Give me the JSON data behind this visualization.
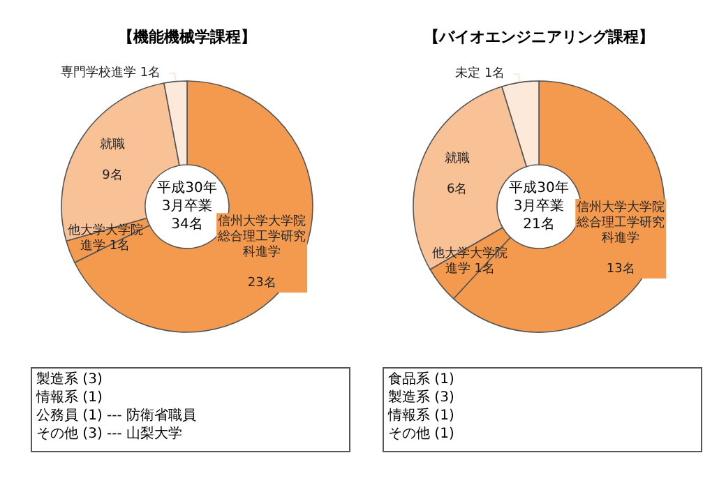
{
  "chart_data": [
    {
      "type": "donut",
      "title": "【機能機械学課程】",
      "categories": [
        "信州大学大学院総合理工学研究科進学",
        "他大学大学院進学",
        "就職",
        "専門学校進学"
      ],
      "values": [
        23,
        1,
        9,
        1
      ],
      "value_labels": [
        "23名",
        "1名",
        "9名",
        "1名"
      ],
      "colors": [
        "#f39a4e",
        "#f39a4e",
        "#f8c196",
        "#fde9da"
      ],
      "annotations": [
        "平成30年\n3月卒業\n34名",
        "製造系 (3)",
        "情報系 (1)",
        "公務員 (1) --- 防衛省職員",
        "その他 (3) --- 山梨大学"
      ]
    },
    {
      "type": "donut",
      "title": "【バイオエンジニアリング課程】",
      "categories": [
        "信州大学大学院総合理工学研究科進学",
        "他大学大学院進学",
        "就職",
        "未定"
      ],
      "values": [
        13,
        1,
        6,
        1
      ],
      "value_labels": [
        "13名",
        "1名",
        "6名",
        "1名"
      ],
      "colors": [
        "#f39a4e",
        "#f39a4e",
        "#f8c196",
        "#fde9da"
      ],
      "annotations": [
        "平成30年\n3月卒業\n21名",
        "食品系 (1)",
        "製造系 (3)",
        "情報系 (1)",
        "その他 (1)"
      ]
    }
  ]
}
